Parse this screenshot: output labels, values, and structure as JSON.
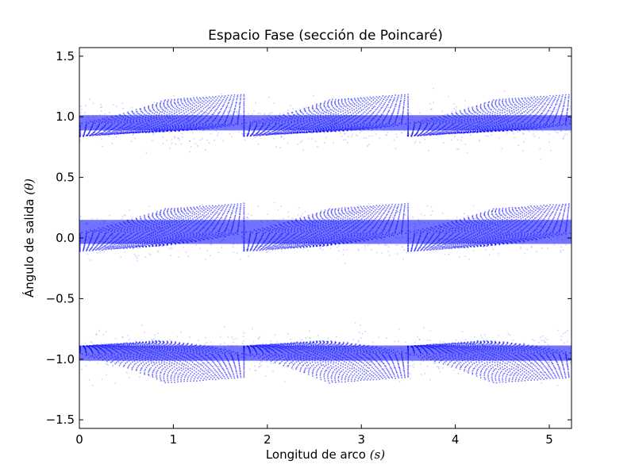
{
  "chart_data": {
    "type": "scatter",
    "title": "Espacio Fase (sección de Poincaré)",
    "xlabel": {
      "text": "Longitud de arco ",
      "symbol": "(s)"
    },
    "ylabel": {
      "text": "Ángulo de salida ",
      "symbol": "(θ)"
    },
    "xlim": [
      0,
      5.236
    ],
    "ylim": [
      -1.571,
      1.571
    ],
    "xticks": [
      {
        "value": 0,
        "label": "0"
      },
      {
        "value": 1,
        "label": "1"
      },
      {
        "value": 2,
        "label": "2"
      },
      {
        "value": 3,
        "label": "3"
      },
      {
        "value": 4,
        "label": "4"
      },
      {
        "value": 5,
        "label": "5"
      }
    ],
    "yticks": [
      {
        "value": 1.5,
        "label": "1.5"
      },
      {
        "value": 1.0,
        "label": "1.0"
      },
      {
        "value": 0.5,
        "label": "0.5"
      },
      {
        "value": 0.0,
        "label": "0.0"
      },
      {
        "value": -0.5,
        "label": "−0.5"
      },
      {
        "value": -1.0,
        "label": "−1.0"
      },
      {
        "value": -1.5,
        "label": "−1.5"
      }
    ],
    "grid": false,
    "legend": "none",
    "point_color": "#0000ff",
    "segments": [
      {
        "x_start": 0.0,
        "x_end": 1.745
      },
      {
        "x_start": 1.745,
        "x_end": 3.49
      },
      {
        "x_start": 3.49,
        "x_end": 5.236
      }
    ],
    "bands": [
      {
        "name": "upper",
        "center": 0.95,
        "halfwidth_start": 0.14,
        "halfwidth_end": 0.36,
        "direction": "down"
      },
      {
        "name": "middle",
        "center": 0.05,
        "halfwidth_start": 0.22,
        "halfwidth_end": 0.36,
        "direction": "down"
      },
      {
        "name": "lower",
        "center": -0.95,
        "halfwidth_start": 0.14,
        "halfwidth_end": 0.36,
        "direction": "up"
      }
    ]
  }
}
